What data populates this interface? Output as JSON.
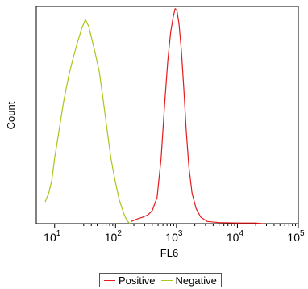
{
  "chart_data": {
    "type": "line",
    "xlabel": "FL6",
    "ylabel": "Count",
    "x_scale": "log",
    "xlim": [
      5,
      100000
    ],
    "ylim": [
      0,
      100
    ],
    "x_ticks": [
      {
        "base": "10",
        "exp": "1",
        "value": 10
      },
      {
        "base": "10",
        "exp": "2",
        "value": 100
      },
      {
        "base": "10",
        "exp": "3",
        "value": 1000
      },
      {
        "base": "10",
        "exp": "4",
        "value": 10000
      },
      {
        "base": "10",
        "exp": "5",
        "value": 100000
      }
    ],
    "series": [
      {
        "name": "Positive",
        "color": "#e41a1c",
        "points": [
          [
            180,
            1
          ],
          [
            220,
            2
          ],
          [
            280,
            3
          ],
          [
            340,
            4
          ],
          [
            400,
            6
          ],
          [
            480,
            12
          ],
          [
            560,
            30
          ],
          [
            640,
            55
          ],
          [
            720,
            75
          ],
          [
            800,
            88
          ],
          [
            880,
            95
          ],
          [
            950,
            99
          ],
          [
            1020,
            98
          ],
          [
            1100,
            92
          ],
          [
            1200,
            80
          ],
          [
            1320,
            62
          ],
          [
            1450,
            42
          ],
          [
            1600,
            26
          ],
          [
            1800,
            14
          ],
          [
            2100,
            7
          ],
          [
            2500,
            3
          ],
          [
            3200,
            1
          ],
          [
            5000,
            0.5
          ],
          [
            10000,
            0.3
          ],
          [
            20000,
            0.3
          ],
          [
            26000,
            0
          ]
        ]
      },
      {
        "name": "Negative",
        "color": "#a5c81a",
        "points": [
          [
            7,
            10
          ],
          [
            8,
            14
          ],
          [
            9,
            20
          ],
          [
            10,
            30
          ],
          [
            12,
            44
          ],
          [
            14,
            56
          ],
          [
            17,
            68
          ],
          [
            20,
            76
          ],
          [
            24,
            84
          ],
          [
            28,
            90
          ],
          [
            32,
            94
          ],
          [
            36,
            91
          ],
          [
            40,
            86
          ],
          [
            46,
            79
          ],
          [
            54,
            70
          ],
          [
            62,
            58
          ],
          [
            72,
            44
          ],
          [
            84,
            30
          ],
          [
            98,
            20
          ],
          [
            115,
            11
          ],
          [
            135,
            5
          ],
          [
            150,
            2
          ],
          [
            170,
            0
          ]
        ]
      }
    ]
  }
}
